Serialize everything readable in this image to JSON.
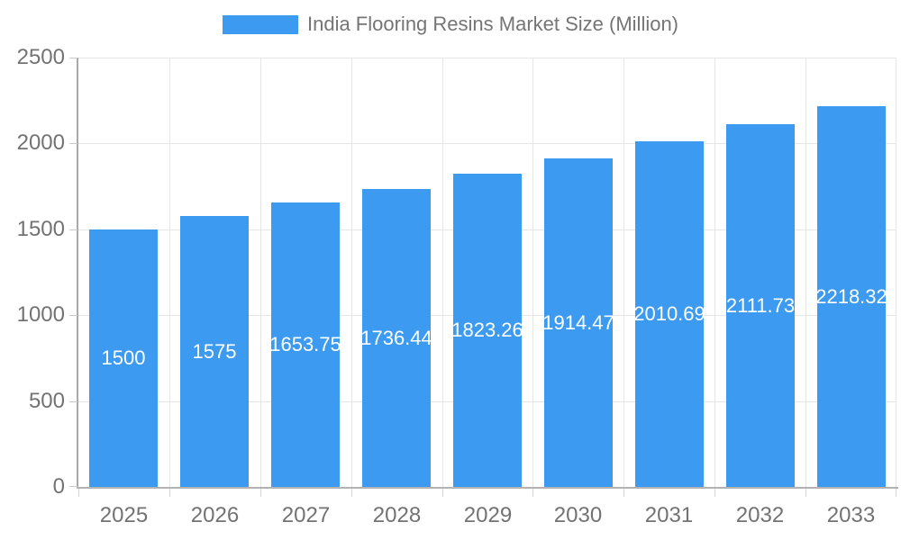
{
  "chart_data": {
    "type": "bar",
    "title": "India Flooring Resins Market Size (Million)",
    "categories": [
      "2025",
      "2026",
      "2027",
      "2028",
      "2029",
      "2030",
      "2031",
      "2032",
      "2033"
    ],
    "values": [
      1500,
      1575,
      1653.75,
      1736.44,
      1823.26,
      1914.47,
      2010.69,
      2111.73,
      2218.32
    ],
    "value_labels": [
      "1500",
      "1575",
      "1653.75",
      "1736.44",
      "1823.26",
      "1914.47",
      "2010.69",
      "2111.73",
      "2218.32"
    ],
    "xlabel": "",
    "ylabel": "",
    "ylim": [
      0,
      2500
    ],
    "y_ticks": [
      0,
      500,
      1000,
      1500,
      2000,
      2500
    ],
    "y_tick_labels": [
      "0",
      "500",
      "1000",
      "1500",
      "2000",
      "2500"
    ],
    "grid": true,
    "legend_position": "top",
    "colors": {
      "bar": "#3C9BF1",
      "bar_label": "#ffffff",
      "axis_text": "#737373",
      "legend_text": "#757575",
      "gridline": "#e6e6e6",
      "y_axis_line": "#a9a9a9",
      "x_axis_line": "#b3b3b3"
    }
  }
}
